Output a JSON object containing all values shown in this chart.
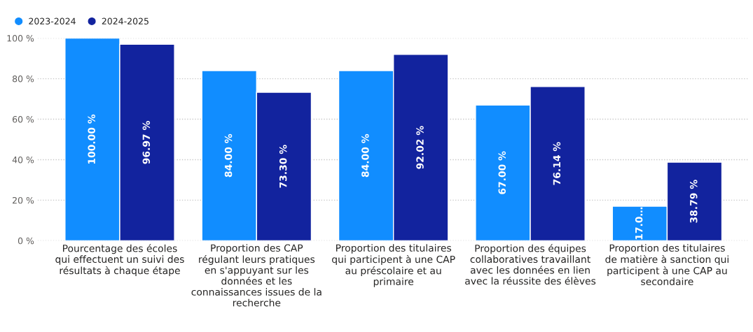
{
  "chart_data": {
    "type": "bar",
    "categories": [
      "Pourcentage des écoles\nqui effectuent un suivi des\nrésultats à chaque étape",
      "Proportion des CAP\nrégulant leurs pratiques\nen s'appuyant sur les\ndonnées et les\nconnaissances issues de la\nrecherche",
      "Proportion des titulaires\nqui participent à une CAP\nau préscolaire et au\nprimaire",
      "Proportion des équipes\ncollaboratives travaillant\navec les données en lien\navec la réussite des élèves",
      "Proportion des titulaires\nde matière à sanction qui\nparticipent à une CAP au\nsecondaire"
    ],
    "series": [
      {
        "name": "2023-2024",
        "color": "#118dff",
        "values": [
          100.0,
          84.0,
          84.0,
          67.0,
          17.0
        ],
        "value_labels": [
          "100.00 %",
          "84.00 %",
          "84.00 %",
          "67.00 %",
          "17.0…"
        ]
      },
      {
        "name": "2024-2025",
        "color": "#12239e",
        "values": [
          96.97,
          73.3,
          92.02,
          76.14,
          38.79
        ],
        "value_labels": [
          "96.97 %",
          "73.30 %",
          "92.02 %",
          "76.14 %",
          "38.79 %"
        ]
      }
    ],
    "ylim": [
      0,
      100
    ],
    "yticks": [
      {
        "value": 0,
        "label": "0 %"
      },
      {
        "value": 20,
        "label": "20 %"
      },
      {
        "value": 40,
        "label": "40 %"
      },
      {
        "value": 60,
        "label": "60 %"
      },
      {
        "value": 80,
        "label": "80 %"
      },
      {
        "value": 100,
        "label": "100 %"
      }
    ],
    "grid": "y",
    "legend": "top left"
  }
}
